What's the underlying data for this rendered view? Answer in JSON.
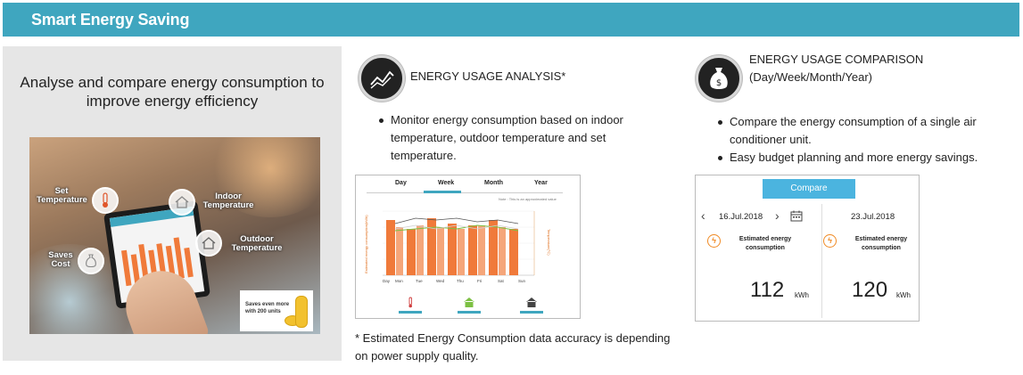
{
  "header": {
    "title": "Smart Energy Saving",
    "bar_color": "#3fa6bf"
  },
  "left": {
    "title": "Analyse and compare energy consumption to improve energy efficiency",
    "labels": {
      "set_temperature": "Set\nTemperature",
      "indoor_temperature": "Indoor\nTemperature",
      "outdoor_temperature": "Outdoor\nTemperature",
      "saves_cost": "Saves\nCost"
    },
    "saves_box": "Saves even more\nwith 200 units"
  },
  "analysis": {
    "icon": "line-chart-icon",
    "heading": "ENERGY USAGE ANALYSIS*",
    "bullets": [
      "Monitor energy consumption based on indoor temperature, outdoor temperature and set temperature."
    ],
    "tabs": [
      "Day",
      "Week",
      "Month",
      "Year"
    ],
    "active_tab": "Week",
    "note": "Note : This is an approximated value",
    "y_left_label": "Estimated energy consumption(kWh)",
    "y_right_label": "Temperature(°C)",
    "x_axis_label": "Day",
    "days": [
      "Mon",
      "Tue",
      "Wed",
      "Thu",
      "Fri",
      "Sat",
      "Sun"
    ],
    "legend_icons": [
      "thermometer-icon",
      "indoor-house-icon",
      "outdoor-house-icon"
    ],
    "bar_color": "#f07a3a",
    "footnote": "* Estimated Energy Consumption data accuracy is depending on power supply quality."
  },
  "comparison": {
    "icon": "money-bag-icon",
    "heading_line1": "ENERGY USAGE COMPARISON",
    "heading_line2": "(Day/Week/Month/Year)",
    "bullets": [
      "Compare the energy consumption of a single air conditioner unit.",
      "Easy budget planning and more energy savings."
    ],
    "compare_button": "Compare",
    "left_date": "16.Jul.2018",
    "right_date": "23.Jul.2018",
    "est_label": "Estimated energy consumption",
    "left_value": "112",
    "right_value": "120",
    "unit": "kWh",
    "button_color": "#4bb4df"
  }
}
